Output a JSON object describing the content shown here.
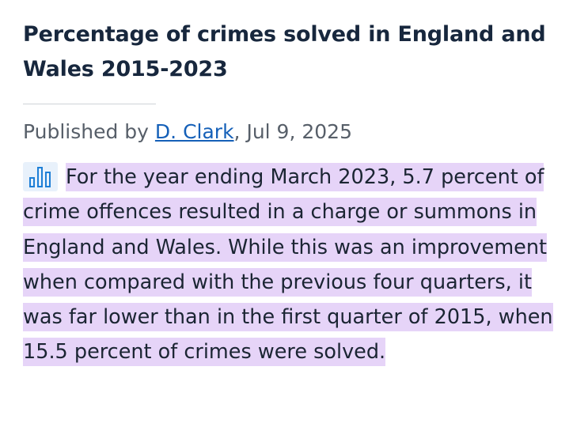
{
  "article": {
    "title": "Percentage of crimes solved in England and Wales 2015-2023",
    "byline": {
      "prefix": "Published by ",
      "author": "D. Clark",
      "date_suffix": ", Jul 9, 2025"
    },
    "statistic_icon": "bar-chart-icon",
    "summary": "For the year ending March 2023, 5.7 percent of crime offences resulted in a charge or summons in England and Wales. While this was an improvement when compared with the previous four quarters, it was far lower than in the first quarter of 2015, when 15.5 percent of crimes were solved."
  },
  "colors": {
    "title": "#17273d",
    "link": "#1560b8",
    "highlight": "#e6d4f8",
    "icon": "#1e7fd6",
    "icon_background": "#e8f1fb"
  }
}
